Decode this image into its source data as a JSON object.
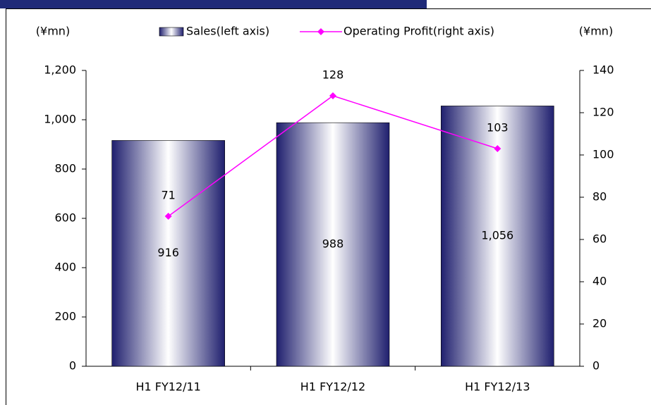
{
  "chart_data": {
    "type": "bar",
    "categories": [
      "H1 FY12/11",
      "H1 FY12/12",
      "H1 FY12/13"
    ],
    "series": [
      {
        "name": "Sales(left axis)",
        "type": "bar",
        "color": "#1f1f6e",
        "values": [
          916,
          988,
          1056
        ],
        "value_labels": [
          "916",
          "988",
          "1,056"
        ]
      },
      {
        "name": "Operating Profit(right axis)",
        "type": "line",
        "axis": "y2",
        "color": "#ff00ff",
        "values": [
          71,
          128,
          103
        ]
      }
    ],
    "y_label": "(¥mn)",
    "y2_label": "(¥mn)",
    "ylim": [
      0,
      1200
    ],
    "yticks": [
      0,
      200,
      400,
      600,
      800,
      {
        "value": 1000,
        "label": "1,000"
      },
      {
        "value": 1200,
        "label": "1,200"
      }
    ],
    "y2lim": [
      0,
      140
    ],
    "y2ticks": [
      0,
      20,
      40,
      60,
      80,
      100,
      120,
      140
    ],
    "grid": false
  }
}
